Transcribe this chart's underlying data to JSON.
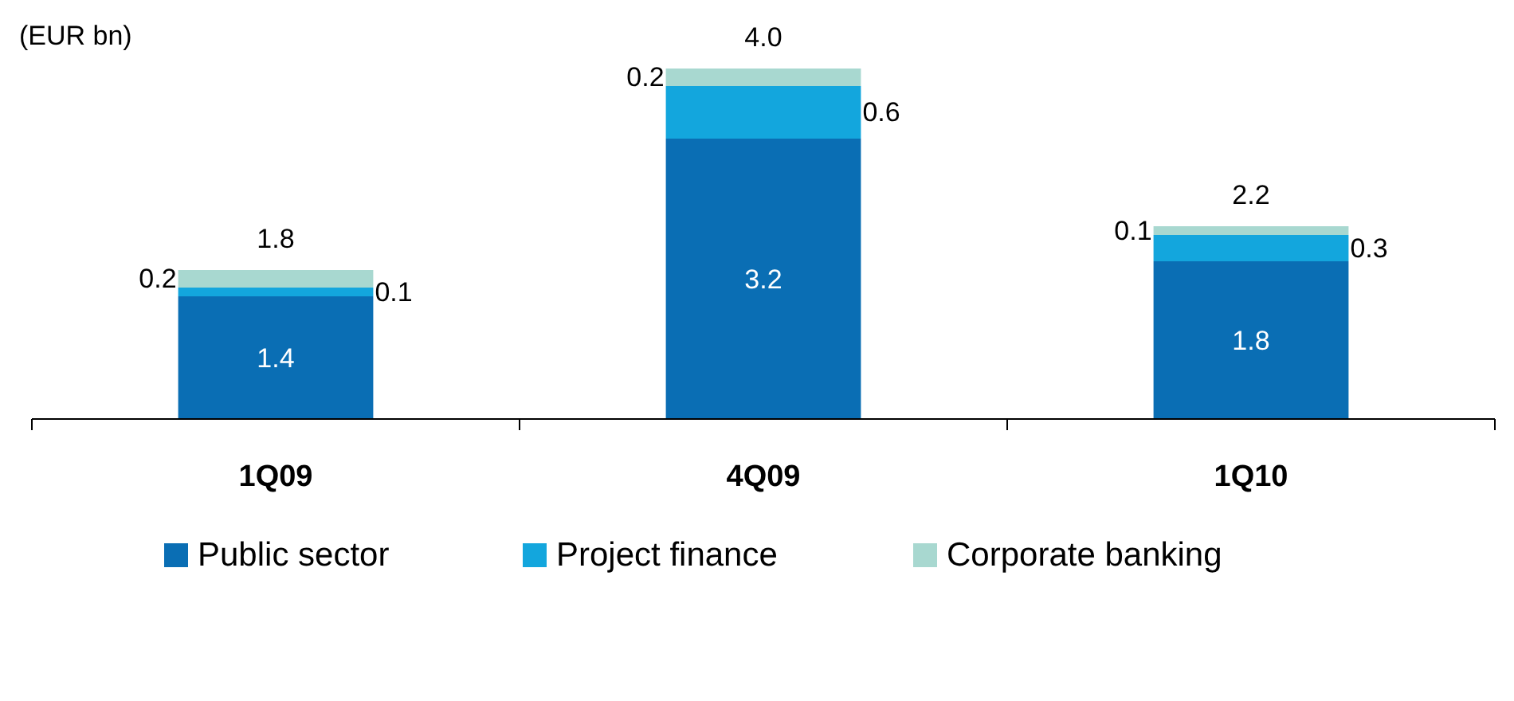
{
  "chart_data": {
    "type": "bar",
    "title": "(EUR bn)",
    "stacked": true,
    "categories": [
      "1Q09",
      "4Q09",
      "1Q10"
    ],
    "series": [
      {
        "name": "Public sector",
        "color": "#0a6eb4",
        "values": [
          1.4,
          3.2,
          1.8
        ]
      },
      {
        "name": "Project finance",
        "color": "#13a6dd",
        "values": [
          0.1,
          0.6,
          0.3
        ]
      },
      {
        "name": "Corporate banking",
        "color": "#a8d8d0",
        "values": [
          0.2,
          0.2,
          0.1
        ]
      }
    ],
    "data_labels": true,
    "totals": [
      "1.8",
      "4.0",
      "2.2"
    ],
    "legend": "bottom"
  }
}
